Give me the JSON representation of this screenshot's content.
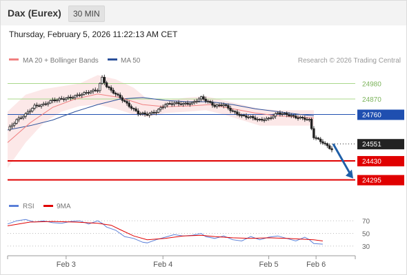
{
  "header": {
    "title": "Dax (Eurex)",
    "timeframe": "30 MIN"
  },
  "timestamp": "Thursday, February 5, 2026 11:22:13 AM CET",
  "legend": {
    "item1": "MA 20 + Bollinger Bands",
    "item2": "MA 50",
    "credit": "Research © 2026 Trading Central"
  },
  "colors": {
    "bollinger": "#f08080",
    "ma50": "#2a4f9a",
    "resistance": "#a8d88a",
    "pivot": "#1f4fb0",
    "support": "#e00000",
    "current": "#222222",
    "arrow": "#1f5fa8",
    "rsi": "#5a7fd8",
    "rsi_ma": "#e00000"
  },
  "chart_data": [
    {
      "type": "candlestick",
      "title": "",
      "x": [
        "Feb 3",
        "Feb 4",
        "Feb 5",
        "Feb 6"
      ],
      "y_range": [
        24200,
        25080
      ],
      "levels": [
        {
          "value": 24980,
          "label": "24980",
          "kind": "resistance"
        },
        {
          "value": 24870,
          "label": "24870",
          "kind": "resistance"
        },
        {
          "value": 24760,
          "label": "24760",
          "kind": "pivot"
        },
        {
          "value": 24551,
          "label": "24551",
          "kind": "current"
        },
        {
          "value": 24430,
          "label": "24430",
          "kind": "support"
        },
        {
          "value": 24295,
          "label": "24295",
          "kind": "support"
        }
      ],
      "projection": {
        "from": 24551,
        "to": 24295,
        "direction": "down"
      },
      "legend": [
        "MA 20 + Bollinger Bands",
        "MA 50"
      ],
      "close_path": [
        [
          0,
          24650
        ],
        [
          4,
          24720
        ],
        [
          8,
          24760
        ],
        [
          12,
          24820
        ],
        [
          16,
          24830
        ],
        [
          20,
          24860
        ],
        [
          24,
          24870
        ],
        [
          28,
          24880
        ],
        [
          32,
          24900
        ],
        [
          36,
          24920
        ],
        [
          40,
          24935
        ],
        [
          42,
          25020
        ],
        [
          44,
          24960
        ],
        [
          46,
          24930
        ],
        [
          50,
          24880
        ],
        [
          54,
          24820
        ],
        [
          58,
          24770
        ],
        [
          62,
          24760
        ],
        [
          66,
          24780
        ],
        [
          70,
          24830
        ],
        [
          74,
          24840
        ],
        [
          78,
          24835
        ],
        [
          82,
          24840
        ],
        [
          86,
          24880
        ],
        [
          88,
          24860
        ],
        [
          92,
          24820
        ],
        [
          96,
          24830
        ],
        [
          100,
          24780
        ],
        [
          104,
          24750
        ],
        [
          108,
          24740
        ],
        [
          112,
          24720
        ],
        [
          116,
          24730
        ],
        [
          120,
          24770
        ],
        [
          124,
          24760
        ],
        [
          128,
          24740
        ],
        [
          132,
          24730
        ],
        [
          134,
          24720
        ],
        [
          136,
          24600
        ],
        [
          140,
          24560
        ],
        [
          144,
          24510
        ]
      ],
      "ma20_path": [
        [
          0,
          24560
        ],
        [
          10,
          24700
        ],
        [
          20,
          24810
        ],
        [
          30,
          24870
        ],
        [
          40,
          24905
        ],
        [
          50,
          24880
        ],
        [
          60,
          24830
        ],
        [
          70,
          24815
        ],
        [
          80,
          24820
        ],
        [
          90,
          24830
        ],
        [
          100,
          24800
        ],
        [
          110,
          24770
        ],
        [
          120,
          24750
        ],
        [
          130,
          24740
        ],
        [
          136,
          24735
        ]
      ],
      "ma50_path": [
        [
          0,
          24650
        ],
        [
          10,
          24680
        ],
        [
          20,
          24720
        ],
        [
          30,
          24780
        ],
        [
          40,
          24830
        ],
        [
          50,
          24870
        ],
        [
          60,
          24880
        ],
        [
          70,
          24860
        ],
        [
          80,
          24850
        ],
        [
          90,
          24850
        ],
        [
          100,
          24830
        ],
        [
          110,
          24800
        ],
        [
          120,
          24780
        ],
        [
          130,
          24760
        ],
        [
          136,
          24750
        ]
      ],
      "band_upper_path": [
        [
          0,
          24780
        ],
        [
          8,
          24900
        ],
        [
          16,
          24940
        ],
        [
          24,
          24960
        ],
        [
          32,
          24980
        ],
        [
          40,
          25040
        ],
        [
          48,
          25010
        ],
        [
          56,
          24950
        ],
        [
          62,
          24870
        ],
        [
          70,
          24860
        ],
        [
          80,
          24880
        ],
        [
          88,
          24890
        ],
        [
          96,
          24860
        ],
        [
          104,
          24830
        ],
        [
          112,
          24800
        ],
        [
          120,
          24790
        ],
        [
          128,
          24790
        ],
        [
          136,
          24790
        ]
      ],
      "band_lower_path": [
        [
          0,
          24380
        ],
        [
          8,
          24560
        ],
        [
          16,
          24700
        ],
        [
          24,
          24780
        ],
        [
          32,
          24820
        ],
        [
          40,
          24830
        ],
        [
          48,
          24800
        ],
        [
          56,
          24760
        ],
        [
          62,
          24740
        ],
        [
          70,
          24770
        ],
        [
          80,
          24780
        ],
        [
          88,
          24790
        ],
        [
          96,
          24760
        ],
        [
          104,
          24720
        ],
        [
          112,
          24680
        ],
        [
          120,
          24680
        ],
        [
          128,
          24680
        ],
        [
          136,
          24680
        ]
      ]
    },
    {
      "type": "line",
      "title": "",
      "x": [
        "Feb 3",
        "Feb 4",
        "Feb 5",
        "Feb 6"
      ],
      "y_ticks": [
        70,
        50,
        30
      ],
      "y_range": [
        20,
        80
      ],
      "series": [
        {
          "name": "RSI",
          "values": [
            [
              0,
              65
            ],
            [
              4,
              70
            ],
            [
              8,
              72
            ],
            [
              12,
              68
            ],
            [
              16,
              70
            ],
            [
              20,
              67
            ],
            [
              24,
              66
            ],
            [
              28,
              69
            ],
            [
              32,
              70
            ],
            [
              36,
              65
            ],
            [
              40,
              70
            ],
            [
              42,
              66
            ],
            [
              44,
              60
            ],
            [
              48,
              55
            ],
            [
              52,
              45
            ],
            [
              56,
              42
            ],
            [
              60,
              36
            ],
            [
              62,
              35
            ],
            [
              66,
              40
            ],
            [
              70,
              44
            ],
            [
              74,
              48
            ],
            [
              78,
              46
            ],
            [
              82,
              47
            ],
            [
              86,
              50
            ],
            [
              88,
              45
            ],
            [
              92,
              42
            ],
            [
              96,
              46
            ],
            [
              100,
              40
            ],
            [
              104,
              38
            ],
            [
              108,
              45
            ],
            [
              112,
              40
            ],
            [
              116,
              44
            ],
            [
              120,
              46
            ],
            [
              124,
              42
            ],
            [
              128,
              38
            ],
            [
              132,
              44
            ],
            [
              134,
              40
            ],
            [
              136,
              34
            ],
            [
              140,
              33
            ]
          ]
        },
        {
          "name": "9MA",
          "values": [
            [
              0,
              62
            ],
            [
              10,
              68
            ],
            [
              20,
              69
            ],
            [
              30,
              68
            ],
            [
              40,
              66
            ],
            [
              46,
              63
            ],
            [
              50,
              56
            ],
            [
              56,
              46
            ],
            [
              62,
              40
            ],
            [
              70,
              42
            ],
            [
              78,
              46
            ],
            [
              86,
              47
            ],
            [
              92,
              45
            ],
            [
              100,
              43
            ],
            [
              108,
              42
            ],
            [
              116,
              43
            ],
            [
              124,
              42
            ],
            [
              130,
              41
            ],
            [
              136,
              40
            ],
            [
              140,
              38
            ]
          ]
        }
      ]
    }
  ],
  "rsi_legend": {
    "item1": "RSI",
    "item2": "9MA"
  }
}
